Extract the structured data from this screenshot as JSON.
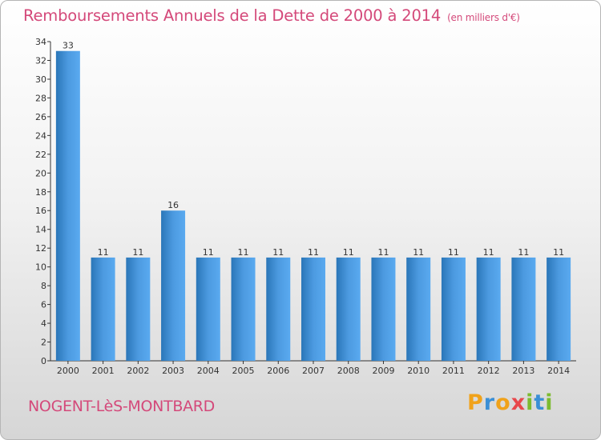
{
  "header": {
    "title": "Remboursements Annuels de la Dette de 2000 à 2014",
    "unit": "(en milliers d'€)"
  },
  "footer": {
    "place": "NOGENT-LèS-MONTBARD",
    "logo": "Proxiti"
  },
  "colors": {
    "title": "#d4497a",
    "bar_light": "#5aaaf0",
    "bar_dark": "#2a76b8",
    "axis": "#333333"
  },
  "chart_data": {
    "type": "bar",
    "title": "Remboursements Annuels de la Dette de 2000 à 2014",
    "xlabel": "",
    "ylabel": "",
    "ylim": [
      0,
      34
    ],
    "yticks": [
      0,
      2,
      4,
      6,
      8,
      10,
      12,
      14,
      16,
      18,
      20,
      22,
      24,
      26,
      28,
      30,
      32,
      34
    ],
    "grid": false,
    "categories": [
      "2000",
      "2001",
      "2002",
      "2003",
      "2004",
      "2005",
      "2006",
      "2007",
      "2008",
      "2009",
      "2010",
      "2011",
      "2012",
      "2013",
      "2014"
    ],
    "values": [
      33,
      11,
      11,
      16,
      11,
      11,
      11,
      11,
      11,
      11,
      11,
      11,
      11,
      11,
      11
    ]
  }
}
